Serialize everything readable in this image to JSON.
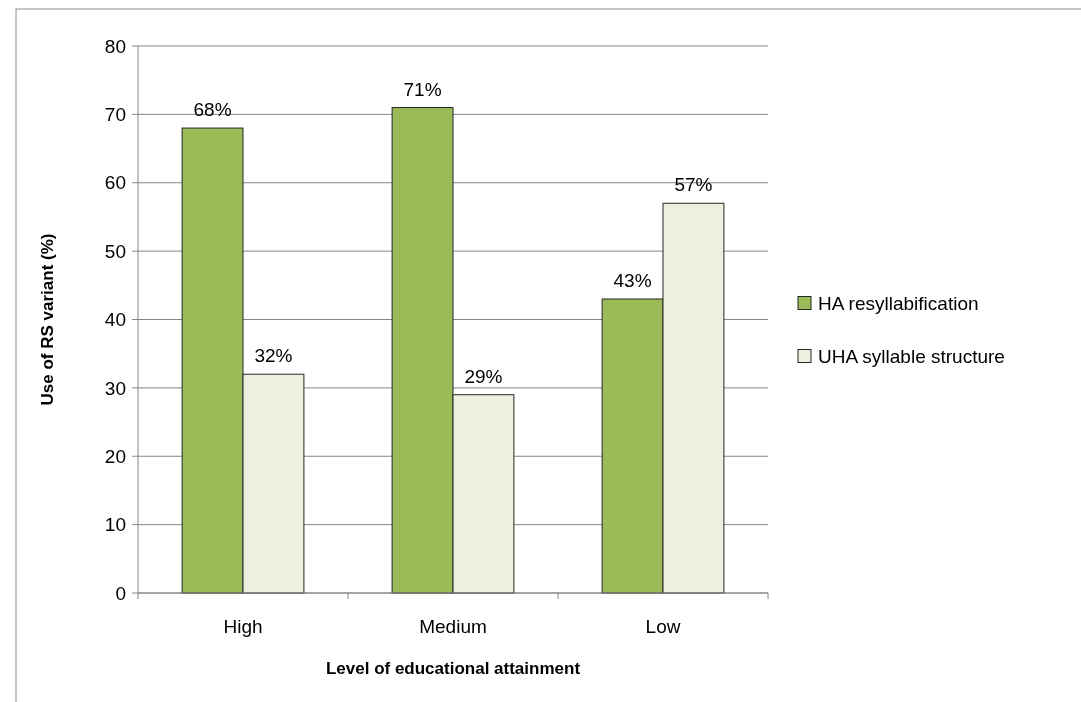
{
  "chart_data": {
    "type": "bar",
    "xlabel": "Level of educational attainment",
    "ylabel": "Use of RS variant (%)",
    "categories": [
      "High",
      "Medium",
      "Low"
    ],
    "series": [
      {
        "name": "HA resyllabification",
        "color": "#9bbb59",
        "values": [
          68,
          71,
          43
        ],
        "value_labels": [
          "68%",
          "71%",
          "43%"
        ]
      },
      {
        "name": "UHA syllable structure",
        "color": "#ebf1de",
        "values": [
          32,
          29,
          57
        ],
        "value_labels": [
          "32%",
          "29%",
          "57%"
        ]
      }
    ],
    "ylim": [
      0,
      80
    ],
    "yticks": [
      0,
      10,
      20,
      30,
      40,
      50,
      60,
      70,
      80
    ],
    "grid": "y",
    "legend": "right"
  }
}
